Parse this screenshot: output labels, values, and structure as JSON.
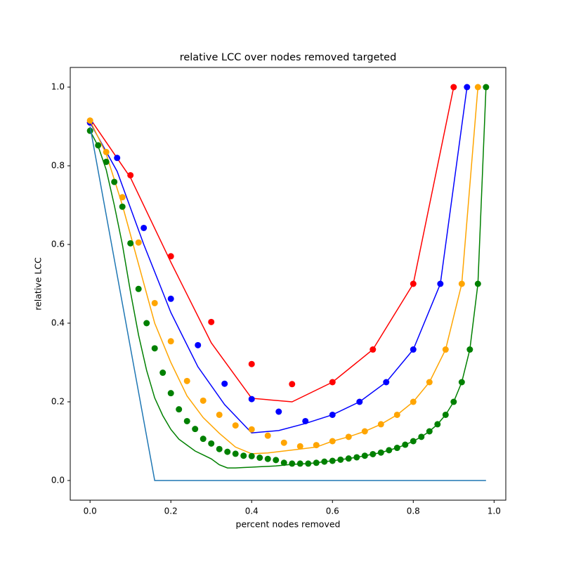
{
  "chart_data": {
    "type": "line",
    "title": "relative LCC over nodes removed targeted",
    "x_label": "percent nodes removed",
    "y_label": "relative LCC",
    "xlim": [
      -0.049,
      1.029
    ],
    "ylim": [
      -0.05,
      1.05
    ],
    "xticks": [
      {
        "value": 0,
        "label": "0.0"
      },
      {
        "value": 0.2,
        "label": "0.2"
      },
      {
        "value": 0.4,
        "label": "0.4"
      },
      {
        "value": 0.6,
        "label": "0.6"
      },
      {
        "value": 0.8,
        "label": "0.8"
      },
      {
        "value": 1,
        "label": "1.0"
      }
    ],
    "yticks": [
      {
        "value": 0,
        "label": "0.0"
      },
      {
        "value": 0.2,
        "label": "0.2"
      },
      {
        "value": 0.4,
        "label": "0.4"
      },
      {
        "value": 0.6,
        "label": "0.6"
      },
      {
        "value": 0.8,
        "label": "0.8"
      },
      {
        "value": 1,
        "label": "1.0"
      }
    ],
    "series": [
      {
        "mode": "line",
        "color": "#ff0000",
        "x": [
          0,
          0.1,
          0.2,
          0.3,
          0.4,
          0.5,
          0.6,
          0.7,
          0.8,
          0.9
        ],
        "values": [
          0.92,
          0.77,
          0.555,
          0.35,
          0.209,
          0.2,
          0.25,
          0.333,
          0.5,
          1.0
        ]
      },
      {
        "mode": "scatter",
        "color": "#ff0000",
        "x": [
          0,
          0.1,
          0.2,
          0.3,
          0.4,
          0.5,
          0.6,
          0.7,
          0.8,
          0.9
        ],
        "values": [
          0.91,
          0.776,
          0.57,
          0.403,
          0.296,
          0.245,
          0.25,
          0.333,
          0.5,
          1.0
        ]
      },
      {
        "mode": "line",
        "color": "#0000ff",
        "x": [
          0,
          0.067,
          0.133,
          0.2,
          0.267,
          0.333,
          0.4,
          0.467,
          0.533,
          0.6,
          0.667,
          0.733,
          0.8,
          0.867,
          0.933
        ],
        "values": [
          0.91,
          0.786,
          0.6,
          0.427,
          0.289,
          0.193,
          0.121,
          0.127,
          0.145,
          0.167,
          0.2,
          0.25,
          0.333,
          0.5,
          1.0
        ]
      },
      {
        "mode": "scatter",
        "color": "#0000ff",
        "x": [
          0,
          0.067,
          0.133,
          0.2,
          0.267,
          0.333,
          0.4,
          0.467,
          0.533,
          0.6,
          0.667,
          0.733,
          0.8,
          0.867,
          0.933
        ],
        "values": [
          0.91,
          0.82,
          0.642,
          0.462,
          0.344,
          0.246,
          0.207,
          0.175,
          0.151,
          0.167,
          0.2,
          0.25,
          0.333,
          0.5,
          1.0
        ]
      },
      {
        "mode": "line",
        "color": "#ffa500",
        "x": [
          0,
          0.04,
          0.08,
          0.12,
          0.16,
          0.2,
          0.24,
          0.28,
          0.32,
          0.36,
          0.4,
          0.44,
          0.48,
          0.52,
          0.56,
          0.6,
          0.64,
          0.68,
          0.72,
          0.76,
          0.8,
          0.84,
          0.88,
          0.92,
          0.96
        ],
        "values": [
          0.915,
          0.83,
          0.7,
          0.55,
          0.4,
          0.3,
          0.215,
          0.16,
          0.12,
          0.085,
          0.068,
          0.07,
          0.075,
          0.08,
          0.085,
          0.1,
          0.111,
          0.125,
          0.143,
          0.167,
          0.2,
          0.25,
          0.333,
          0.5,
          1.0
        ]
      },
      {
        "mode": "scatter",
        "color": "#ffa500",
        "x": [
          0,
          0.04,
          0.08,
          0.12,
          0.16,
          0.2,
          0.24,
          0.28,
          0.32,
          0.36,
          0.4,
          0.44,
          0.48,
          0.52,
          0.56,
          0.6,
          0.64,
          0.68,
          0.72,
          0.76,
          0.8,
          0.84,
          0.88,
          0.92,
          0.96
        ],
        "values": [
          0.915,
          0.835,
          0.72,
          0.605,
          0.451,
          0.354,
          0.253,
          0.203,
          0.167,
          0.14,
          0.13,
          0.114,
          0.096,
          0.087,
          0.09,
          0.1,
          0.111,
          0.125,
          0.143,
          0.167,
          0.2,
          0.25,
          0.333,
          0.5,
          1.0
        ]
      },
      {
        "mode": "line",
        "color": "#008000",
        "x": [
          0,
          0.02,
          0.04,
          0.06,
          0.08,
          0.1,
          0.12,
          0.14,
          0.16,
          0.18,
          0.2,
          0.22,
          0.24,
          0.26,
          0.28,
          0.3,
          0.32,
          0.34,
          0.36,
          0.38,
          0.4,
          0.42,
          0.44,
          0.46,
          0.48,
          0.5,
          0.52,
          0.54,
          0.56,
          0.58,
          0.6,
          0.62,
          0.64,
          0.66,
          0.68,
          0.7,
          0.72,
          0.74,
          0.76,
          0.78,
          0.8,
          0.82,
          0.84,
          0.86,
          0.88,
          0.9,
          0.92,
          0.94,
          0.96,
          0.98
        ],
        "values": [
          0.889,
          0.85,
          0.79,
          0.7,
          0.6,
          0.48,
          0.37,
          0.28,
          0.21,
          0.165,
          0.13,
          0.105,
          0.09,
          0.075,
          0.065,
          0.055,
          0.04,
          0.032,
          0.032,
          0.033,
          0.034,
          0.035,
          0.036,
          0.037,
          0.039,
          0.041,
          0.042,
          0.043,
          0.045,
          0.048,
          0.05,
          0.053,
          0.056,
          0.059,
          0.063,
          0.067,
          0.071,
          0.077,
          0.083,
          0.091,
          0.1,
          0.111,
          0.125,
          0.143,
          0.167,
          0.2,
          0.25,
          0.333,
          0.5,
          1.0
        ]
      },
      {
        "mode": "scatter",
        "color": "#008000",
        "x": [
          0,
          0.02,
          0.04,
          0.06,
          0.08,
          0.1,
          0.12,
          0.14,
          0.16,
          0.18,
          0.2,
          0.22,
          0.24,
          0.26,
          0.28,
          0.3,
          0.32,
          0.34,
          0.36,
          0.38,
          0.4,
          0.42,
          0.44,
          0.46,
          0.48,
          0.5,
          0.52,
          0.54,
          0.56,
          0.58,
          0.6,
          0.62,
          0.64,
          0.66,
          0.68,
          0.7,
          0.72,
          0.74,
          0.76,
          0.78,
          0.8,
          0.82,
          0.84,
          0.86,
          0.88,
          0.9,
          0.92,
          0.94,
          0.96,
          0.98
        ],
        "values": [
          0.889,
          0.852,
          0.81,
          0.759,
          0.696,
          0.603,
          0.487,
          0.4,
          0.336,
          0.274,
          0.222,
          0.181,
          0.151,
          0.131,
          0.106,
          0.094,
          0.08,
          0.073,
          0.068,
          0.063,
          0.062,
          0.058,
          0.055,
          0.052,
          0.045,
          0.043,
          0.043,
          0.043,
          0.045,
          0.048,
          0.05,
          0.053,
          0.056,
          0.059,
          0.063,
          0.067,
          0.071,
          0.077,
          0.083,
          0.091,
          0.1,
          0.111,
          0.125,
          0.143,
          0.167,
          0.2,
          0.25,
          0.333,
          0.5,
          1.0
        ]
      },
      {
        "mode": "line",
        "color": "#1f77b4",
        "x": [
          0,
          0.16,
          0.98
        ],
        "values": [
          0.9,
          0,
          0
        ]
      }
    ]
  }
}
